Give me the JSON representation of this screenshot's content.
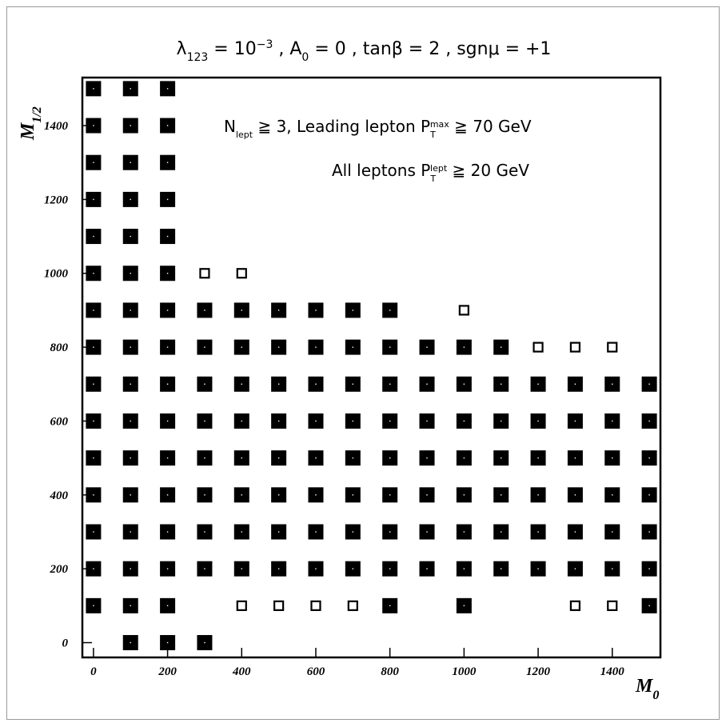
{
  "chart_data": {
    "type": "scatter",
    "title_parts": [
      "λ",
      "123",
      " = 10",
      "−3",
      " , A",
      "0",
      " = 0 , tanβ = 2 , sgnμ = +1"
    ],
    "annotations": [
      [
        "N",
        "lept",
        " ≧ 3,   Leading lepton P",
        "T",
        "max",
        " ≧ 70 GeV"
      ],
      [
        "All leptons P",
        "T",
        "lept",
        " ≧ 20 GeV"
      ]
    ],
    "xlabel_parts": [
      "M",
      "0"
    ],
    "ylabel_parts": [
      "M",
      "1/2"
    ],
    "xlim": [
      -30,
      1530
    ],
    "ylim": [
      -40,
      1530
    ],
    "xticks": [
      0,
      200,
      400,
      600,
      800,
      1000,
      1200,
      1400
    ],
    "yticks": [
      0,
      200,
      400,
      600,
      800,
      1000,
      1200,
      1400
    ],
    "series": [
      {
        "marker": "filled-square",
        "color": "#000000",
        "x": [
          0,
          100,
          200,
          0,
          100,
          200,
          0,
          100,
          200,
          0,
          100,
          200,
          0,
          100,
          200,
          0,
          100,
          200,
          0,
          100,
          200,
          300,
          400,
          500,
          600,
          700,
          800,
          0,
          100,
          200,
          300,
          400,
          500,
          600,
          700,
          800,
          900,
          1000,
          1100,
          0,
          100,
          200,
          300,
          400,
          500,
          600,
          700,
          800,
          900,
          1000,
          1100,
          1200,
          1300,
          1400,
          1500,
          0,
          100,
          200,
          300,
          400,
          500,
          600,
          700,
          800,
          900,
          1000,
          1100,
          1200,
          1300,
          1400,
          1500,
          0,
          100,
          200,
          300,
          400,
          500,
          600,
          700,
          800,
          900,
          1000,
          1100,
          1200,
          1300,
          1400,
          1500,
          0,
          100,
          200,
          300,
          400,
          500,
          600,
          700,
          800,
          900,
          1000,
          1100,
          1200,
          1300,
          1400,
          1500,
          0,
          100,
          200,
          300,
          400,
          500,
          600,
          700,
          800,
          900,
          1000,
          1100,
          1200,
          1300,
          1400,
          1500,
          0,
          100,
          200,
          300,
          400,
          500,
          600,
          700,
          800,
          900,
          1000,
          1100,
          1200,
          1300,
          1400,
          1500,
          0,
          100,
          200,
          800,
          1000,
          1500,
          100,
          200,
          300
        ],
        "y": [
          1500,
          1500,
          1500,
          1400,
          1400,
          1400,
          1300,
          1300,
          1300,
          1200,
          1200,
          1200,
          1100,
          1100,
          1100,
          1000,
          1000,
          1000,
          900,
          900,
          900,
          900,
          900,
          900,
          900,
          900,
          900,
          800,
          800,
          800,
          800,
          800,
          800,
          800,
          800,
          800,
          800,
          800,
          800,
          700,
          700,
          700,
          700,
          700,
          700,
          700,
          700,
          700,
          700,
          700,
          700,
          700,
          700,
          700,
          700,
          600,
          600,
          600,
          600,
          600,
          600,
          600,
          600,
          600,
          600,
          600,
          600,
          600,
          600,
          600,
          600,
          500,
          500,
          500,
          500,
          500,
          500,
          500,
          500,
          500,
          500,
          500,
          500,
          500,
          500,
          500,
          500,
          400,
          400,
          400,
          400,
          400,
          400,
          400,
          400,
          400,
          400,
          400,
          400,
          400,
          400,
          400,
          400,
          300,
          300,
          300,
          300,
          300,
          300,
          300,
          300,
          300,
          300,
          300,
          300,
          300,
          300,
          300,
          300,
          200,
          200,
          200,
          200,
          200,
          200,
          200,
          200,
          200,
          200,
          200,
          200,
          200,
          200,
          200,
          200,
          100,
          100,
          100,
          100,
          100,
          100,
          0,
          0,
          0
        ]
      },
      {
        "marker": "open-square",
        "color": "#000000",
        "x": [
          300,
          400,
          1000,
          1200,
          1300,
          1400,
          400,
          500,
          600,
          700,
          1300,
          1400
        ],
        "y": [
          1000,
          1000,
          900,
          800,
          800,
          800,
          100,
          100,
          100,
          100,
          100,
          100
        ]
      }
    ]
  }
}
